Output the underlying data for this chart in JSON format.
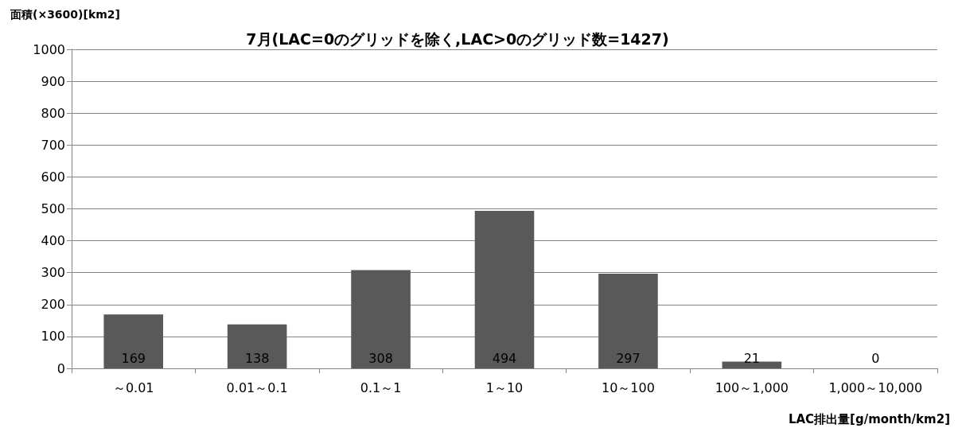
{
  "chart_data": {
    "type": "bar",
    "title": "7月(LAC=0のグリッドを除く,LAC>0のグリッド数=1427)",
    "ylabel": "面積(×3600)[km2]",
    "xlabel": "LAC排出量[g/month/km2]",
    "categories": [
      "～0.01",
      "0.01～0.1",
      "0.1～1",
      "1～10",
      "10～100",
      "100～1,000",
      "1,000～10,000"
    ],
    "values": [
      169,
      138,
      308,
      494,
      297,
      21,
      0
    ],
    "color": "#595959",
    "ylim": [
      0,
      1000
    ],
    "yticks": [
      0,
      100,
      200,
      300,
      400,
      500,
      600,
      700,
      800,
      900,
      1000
    ],
    "grid": "y",
    "data_labels": true
  }
}
